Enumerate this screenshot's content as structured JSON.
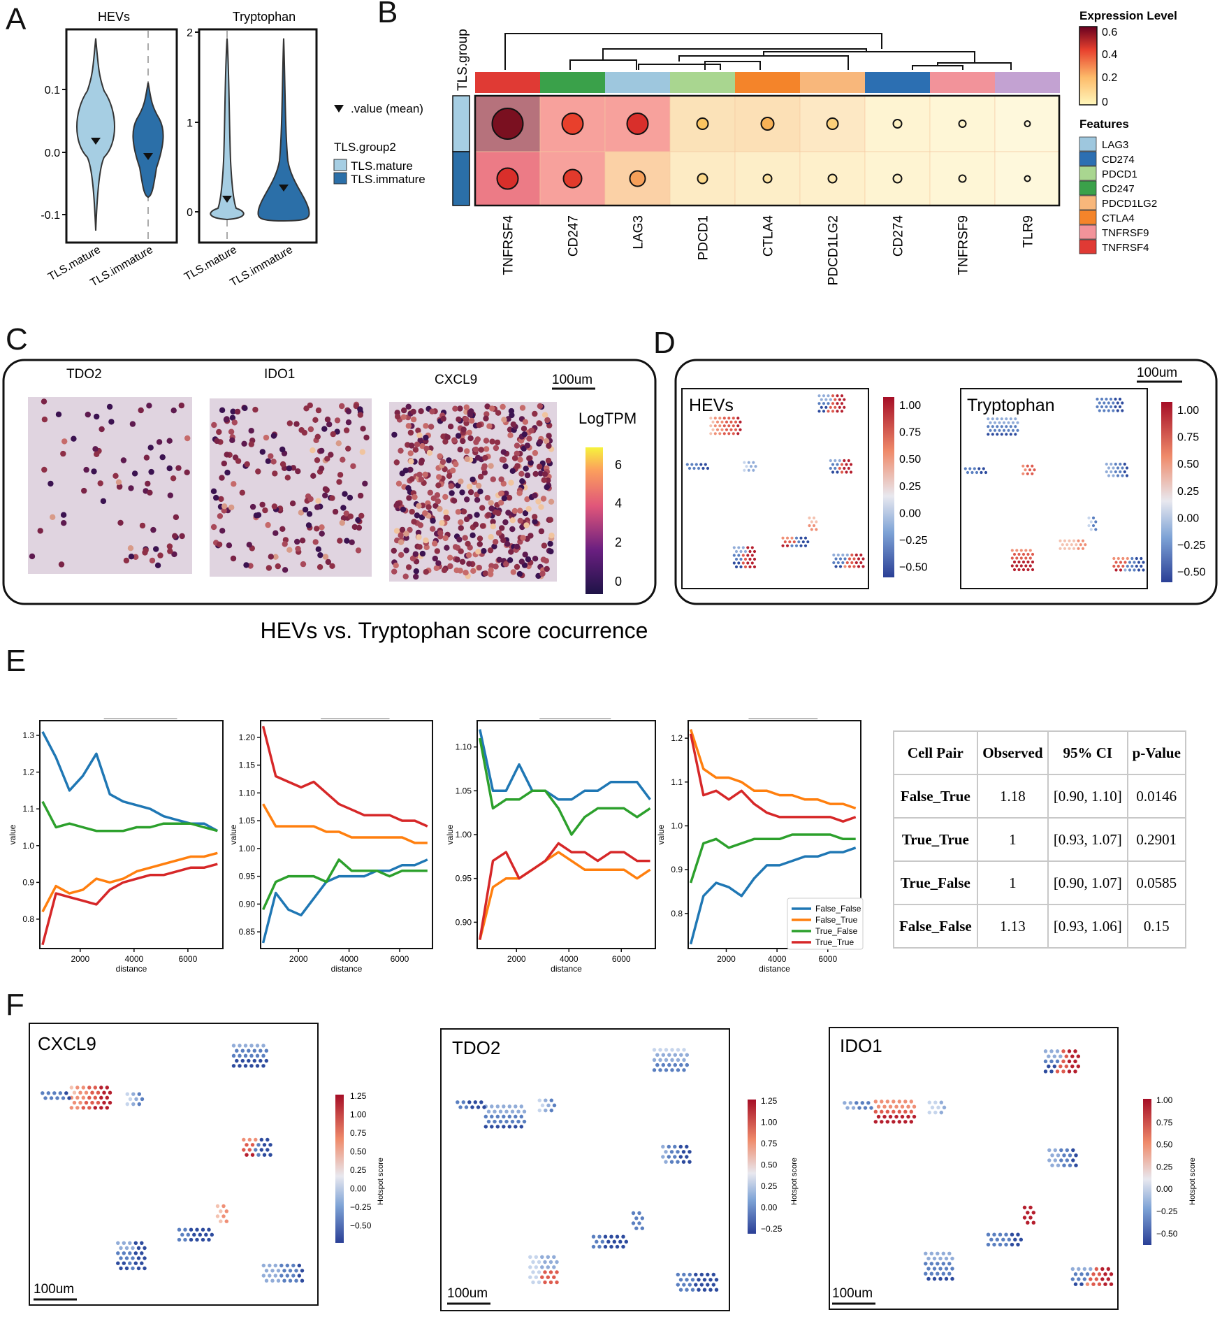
{
  "panel_letters": [
    "A",
    "B",
    "C",
    "D",
    "E",
    "F"
  ],
  "panelA": {
    "left": {
      "title": "HEVs",
      "yticks": [
        "0.1",
        "0.0",
        "-0.1"
      ],
      "xticks": [
        "TLS.mature",
        "TLS.immature"
      ]
    },
    "right": {
      "title": "Tryptophan",
      "yticks": [
        "2",
        "1",
        "0"
      ],
      "xticks": [
        "TLS.mature",
        "TLS.immature"
      ]
    },
    "mean_legend": ".value (mean)",
    "group_legend_title": "TLS.group2",
    "groups": [
      "TLS.mature",
      "TLS.immature"
    ],
    "group_colors": [
      "#a6cee3",
      "#2b6fa8"
    ]
  },
  "panelB": {
    "row_annotation_title": "TLS.group",
    "features": [
      "TNFRSF4",
      "CD247",
      "LAG3",
      "PDCD1",
      "CTLA4",
      "PDCD1LG2",
      "CD274",
      "TNFRSF9",
      "TLR9"
    ],
    "feature_colors": [
      "#e03a34",
      "#3aa14a",
      "#9ec7de",
      "#a9d690",
      "#f4842a",
      "#f8b77b",
      "#2c6fb2",
      "#f2939a",
      "#c3a2d2"
    ],
    "expr_title": "Expression Level",
    "expr_ticks": [
      "0.6",
      "0.4",
      "0.2",
      "0"
    ],
    "legend_title": "Features",
    "legend_items": [
      "LAG3",
      "CD274",
      "PDCD1",
      "CD247",
      "PDCD1LG2",
      "CTLA4",
      "TNFRSF9",
      "TNFRSF4"
    ],
    "legend_colors": [
      "#9ec7de",
      "#2c6fb2",
      "#a9d690",
      "#3aa14a",
      "#f8b77b",
      "#f4842a",
      "#f2939a",
      "#e03a34"
    ]
  },
  "panelC": {
    "titles": [
      "TDO2",
      "IDO1",
      "CXCL9"
    ],
    "scalebar": "100um",
    "colorbar_title": "LogTPM",
    "colorbar_ticks": [
      "6",
      "4",
      "2",
      "0"
    ]
  },
  "panelD": {
    "titles": [
      "HEVs",
      "Tryptophan"
    ],
    "scalebar": "100um",
    "ticks_left": [
      "1.00",
      "0.75",
      "0.50",
      "0.25",
      "0.00",
      "−0.25",
      "−0.50"
    ],
    "ticks_right": [
      "1.00",
      "0.75",
      "0.50",
      "0.25",
      "0.00",
      "−0.25",
      "−0.50"
    ]
  },
  "mid_title": "HEVs vs. Tryptophan score cocurrence",
  "panelE": {
    "ylabel": "value",
    "xlabel": "distance",
    "xticks": [
      "2000",
      "4000",
      "6000"
    ],
    "yticks": [
      [
        "1.3",
        "1.2",
        "1.1",
        "1.0",
        "0.9",
        "0.8"
      ],
      [
        "1.20",
        "1.15",
        "1.10",
        "1.05",
        "1.00",
        "0.95",
        "0.90",
        "0.85"
      ],
      [
        "1.10",
        "1.05",
        "1.00",
        "0.95",
        "0.90"
      ],
      [
        "1.2",
        "1.1",
        "1.0",
        "0.9",
        "0.8"
      ]
    ],
    "legend": [
      "False_False",
      "False_True",
      "True_False",
      "True_True"
    ],
    "series_colors": [
      "#1f77b4",
      "#ff7f0e",
      "#2ca02c",
      "#d62728"
    ]
  },
  "chart_data": [
    {
      "type": "line",
      "xlabel": "distance",
      "ylabel": "value",
      "xlim": [
        500,
        7300
      ],
      "ylim": [
        0.72,
        1.34
      ],
      "x": [
        600,
        1100,
        1600,
        2100,
        2600,
        3100,
        3600,
        4100,
        4600,
        5100,
        5600,
        6100,
        6600,
        7100
      ],
      "series": [
        {
          "name": "False_False",
          "values": [
            1.31,
            1.24,
            1.15,
            1.19,
            1.25,
            1.14,
            1.12,
            1.11,
            1.1,
            1.08,
            1.07,
            1.06,
            1.06,
            1.04
          ]
        },
        {
          "name": "False_True",
          "values": [
            0.82,
            0.89,
            0.87,
            0.88,
            0.91,
            0.9,
            0.91,
            0.93,
            0.94,
            0.95,
            0.96,
            0.97,
            0.97,
            0.98
          ]
        },
        {
          "name": "True_False",
          "values": [
            1.12,
            1.05,
            1.06,
            1.05,
            1.04,
            1.04,
            1.04,
            1.05,
            1.05,
            1.06,
            1.06,
            1.06,
            1.05,
            1.04
          ]
        },
        {
          "name": "True_True",
          "values": [
            0.73,
            0.87,
            0.86,
            0.85,
            0.84,
            0.88,
            0.9,
            0.91,
            0.92,
            0.92,
            0.93,
            0.94,
            0.94,
            0.95
          ]
        }
      ]
    },
    {
      "type": "line",
      "xlabel": "distance",
      "ylabel": "value",
      "xlim": [
        500,
        7300
      ],
      "ylim": [
        0.82,
        1.23
      ],
      "x": [
        600,
        1100,
        1600,
        2100,
        2600,
        3100,
        3600,
        4100,
        4600,
        5100,
        5600,
        6100,
        6600,
        7100
      ],
      "series": [
        {
          "name": "False_False",
          "values": [
            0.83,
            0.92,
            0.89,
            0.88,
            0.91,
            0.94,
            0.95,
            0.95,
            0.95,
            0.96,
            0.96,
            0.97,
            0.97,
            0.98
          ]
        },
        {
          "name": "False_True",
          "values": [
            1.08,
            1.04,
            1.04,
            1.04,
            1.04,
            1.03,
            1.03,
            1.02,
            1.02,
            1.02,
            1.02,
            1.02,
            1.01,
            1.01
          ]
        },
        {
          "name": "True_False",
          "values": [
            0.89,
            0.94,
            0.95,
            0.95,
            0.95,
            0.94,
            0.98,
            0.96,
            0.96,
            0.96,
            0.95,
            0.96,
            0.96,
            0.96
          ]
        },
        {
          "name": "True_True",
          "values": [
            1.22,
            1.13,
            1.12,
            1.11,
            1.12,
            1.1,
            1.08,
            1.07,
            1.06,
            1.06,
            1.06,
            1.05,
            1.05,
            1.04
          ]
        }
      ]
    },
    {
      "type": "line",
      "xlabel": "distance",
      "ylabel": "value",
      "xlim": [
        500,
        7300
      ],
      "ylim": [
        0.87,
        1.13
      ],
      "x": [
        600,
        1100,
        1600,
        2100,
        2600,
        3100,
        3600,
        4100,
        4600,
        5100,
        5600,
        6100,
        6600,
        7100
      ],
      "series": [
        {
          "name": "False_False",
          "values": [
            1.12,
            1.05,
            1.05,
            1.08,
            1.05,
            1.05,
            1.04,
            1.04,
            1.05,
            1.05,
            1.06,
            1.06,
            1.06,
            1.04
          ]
        },
        {
          "name": "False_True",
          "values": [
            0.88,
            0.94,
            0.95,
            0.95,
            0.96,
            0.97,
            0.98,
            0.97,
            0.96,
            0.96,
            0.96,
            0.96,
            0.95,
            0.96
          ]
        },
        {
          "name": "True_False",
          "values": [
            1.11,
            1.03,
            1.04,
            1.04,
            1.05,
            1.05,
            1.03,
            1.0,
            1.02,
            1.03,
            1.03,
            1.03,
            1.02,
            1.03
          ]
        },
        {
          "name": "True_True",
          "values": [
            0.88,
            0.97,
            0.98,
            0.95,
            0.96,
            0.97,
            0.99,
            0.98,
            0.98,
            0.97,
            0.98,
            0.98,
            0.97,
            0.97
          ]
        }
      ]
    },
    {
      "type": "line",
      "xlabel": "distance",
      "ylabel": "value",
      "xlim": [
        500,
        7300
      ],
      "ylim": [
        0.72,
        1.24
      ],
      "x": [
        600,
        1100,
        1600,
        2100,
        2600,
        3100,
        3600,
        4100,
        4600,
        5100,
        5600,
        6100,
        6600,
        7100
      ],
      "series": [
        {
          "name": "False_False",
          "values": [
            0.73,
            0.84,
            0.87,
            0.86,
            0.84,
            0.88,
            0.91,
            0.91,
            0.92,
            0.93,
            0.93,
            0.94,
            0.94,
            0.95
          ]
        },
        {
          "name": "False_True",
          "values": [
            1.22,
            1.13,
            1.11,
            1.11,
            1.1,
            1.08,
            1.08,
            1.07,
            1.07,
            1.06,
            1.06,
            1.05,
            1.05,
            1.04
          ]
        },
        {
          "name": "True_False",
          "values": [
            0.87,
            0.96,
            0.97,
            0.95,
            0.96,
            0.97,
            0.97,
            0.97,
            0.98,
            0.98,
            0.98,
            0.98,
            0.97,
            0.97
          ]
        },
        {
          "name": "True_True",
          "values": [
            1.21,
            1.07,
            1.08,
            1.06,
            1.08,
            1.05,
            1.03,
            1.02,
            1.02,
            1.02,
            1.02,
            1.02,
            1.01,
            1.02
          ]
        }
      ]
    }
  ],
  "table": {
    "headers": [
      "Cell Pair",
      "Observed",
      "95% CI",
      "p-Value"
    ],
    "rows": [
      [
        "False_True",
        "1.18",
        "[0.90, 1.10]",
        "0.0146"
      ],
      [
        "True_True",
        "1",
        "[0.93, 1.07]",
        "0.2901"
      ],
      [
        "True_False",
        "1",
        "[0.90, 1.07]",
        "0.0585"
      ],
      [
        "False_False",
        "1.13",
        "[0.93, 1.06]",
        "0.15"
      ]
    ]
  },
  "panelF": {
    "titles": [
      "CXCL9",
      "TDO2",
      "IDO1"
    ],
    "scalebar": "100um",
    "colorbar_label": "Hotspot score",
    "ticks": [
      [
        "1.25",
        "1.00",
        "0.75",
        "0.50",
        "0.25",
        "0.00",
        "−0.25",
        "−0.50"
      ],
      [
        "1.25",
        "1.00",
        "0.75",
        "0.50",
        "0.25",
        "0.00",
        "−0.25"
      ],
      [
        "1.00",
        "0.75",
        "0.50",
        "0.25",
        "0.00",
        "−0.25",
        "−0.50"
      ]
    ]
  }
}
